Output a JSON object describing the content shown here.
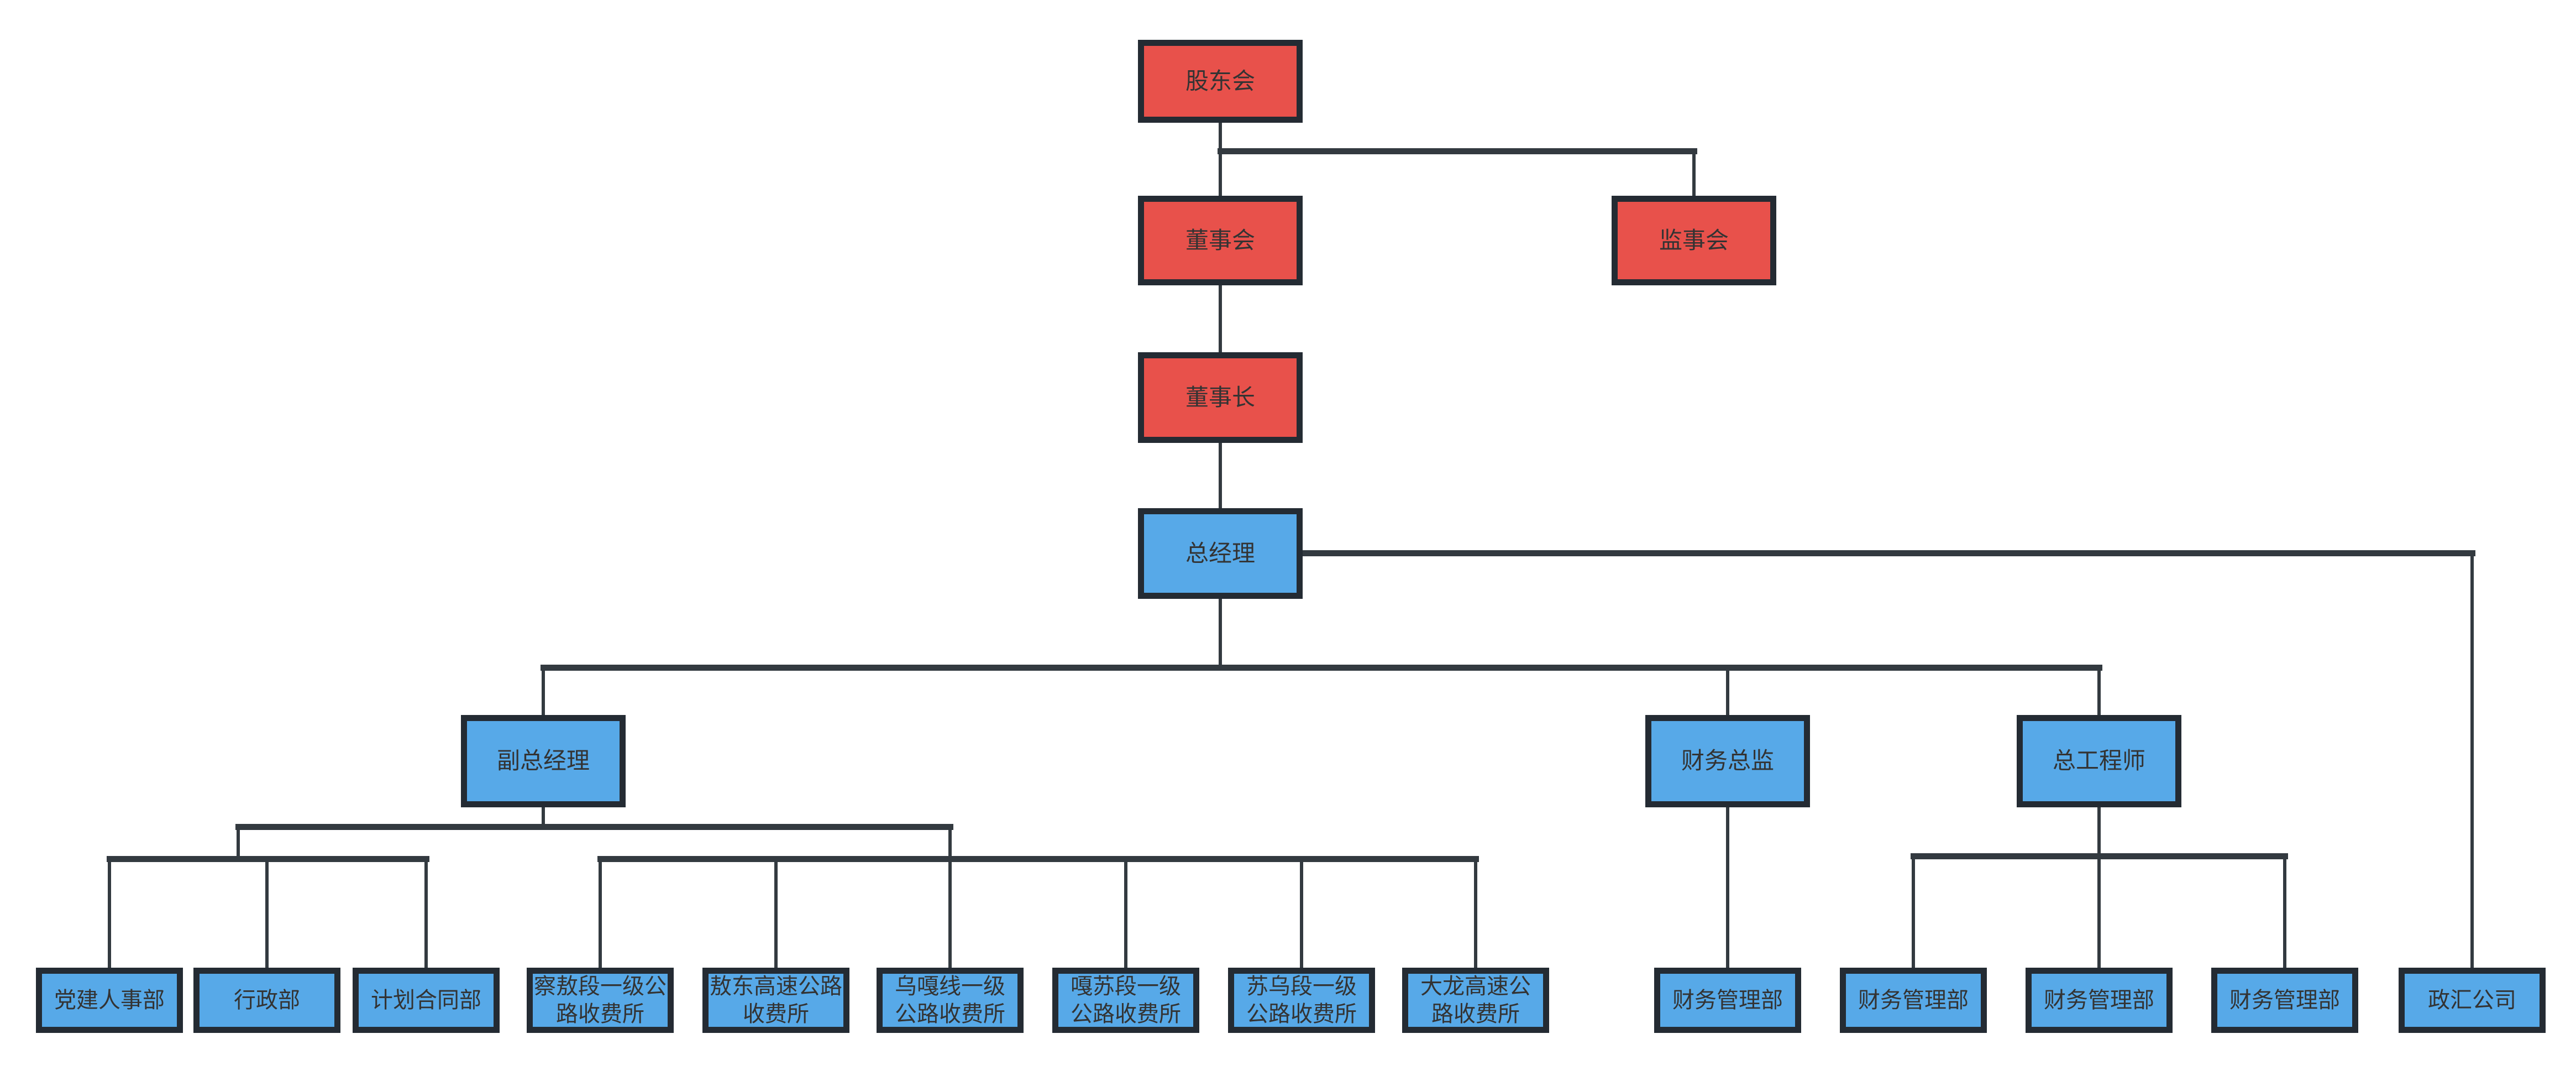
{
  "diagram": {
    "type": "org-chart",
    "colors": {
      "red_fill": "#e8514b",
      "blue_fill": "#57a9e8",
      "box_border": "#242b33",
      "line": "#333a40",
      "text": "#333333",
      "background": "#ffffff"
    },
    "nodes": {
      "shareholders": {
        "label": "股东会"
      },
      "board": {
        "label": "董事会"
      },
      "supervisors": {
        "label": "监事会"
      },
      "chairman": {
        "label": "董事长"
      },
      "gm": {
        "label": "总经理"
      },
      "deputy_gm": {
        "label": "副总经理"
      },
      "cfo": {
        "label": "财务总监"
      },
      "chief_engineer": {
        "label": "总工程师"
      },
      "dept_party_hr": {
        "label": "党建人事部"
      },
      "dept_admin": {
        "label": "行政部"
      },
      "dept_planning": {
        "label": "计划合同部"
      },
      "toll_chaao": {
        "label": "察敖段一级公\n路收费所"
      },
      "toll_aodong": {
        "label": "敖东高速公路\n收费所"
      },
      "toll_wuga": {
        "label": "乌嘎线一级\n公路收费所"
      },
      "toll_gasu": {
        "label": "嘎苏段一级\n公路收费所"
      },
      "toll_suwu": {
        "label": "苏乌段一级\n公路收费所"
      },
      "toll_dalong": {
        "label": "大龙高速公\n路收费所"
      },
      "finance_1": {
        "label": "财务管理部"
      },
      "finance_2": {
        "label": "财务管理部"
      },
      "finance_3": {
        "label": "财务管理部"
      },
      "finance_4": {
        "label": "财务管理部"
      },
      "zhenghui": {
        "label": "政汇公司"
      }
    }
  }
}
